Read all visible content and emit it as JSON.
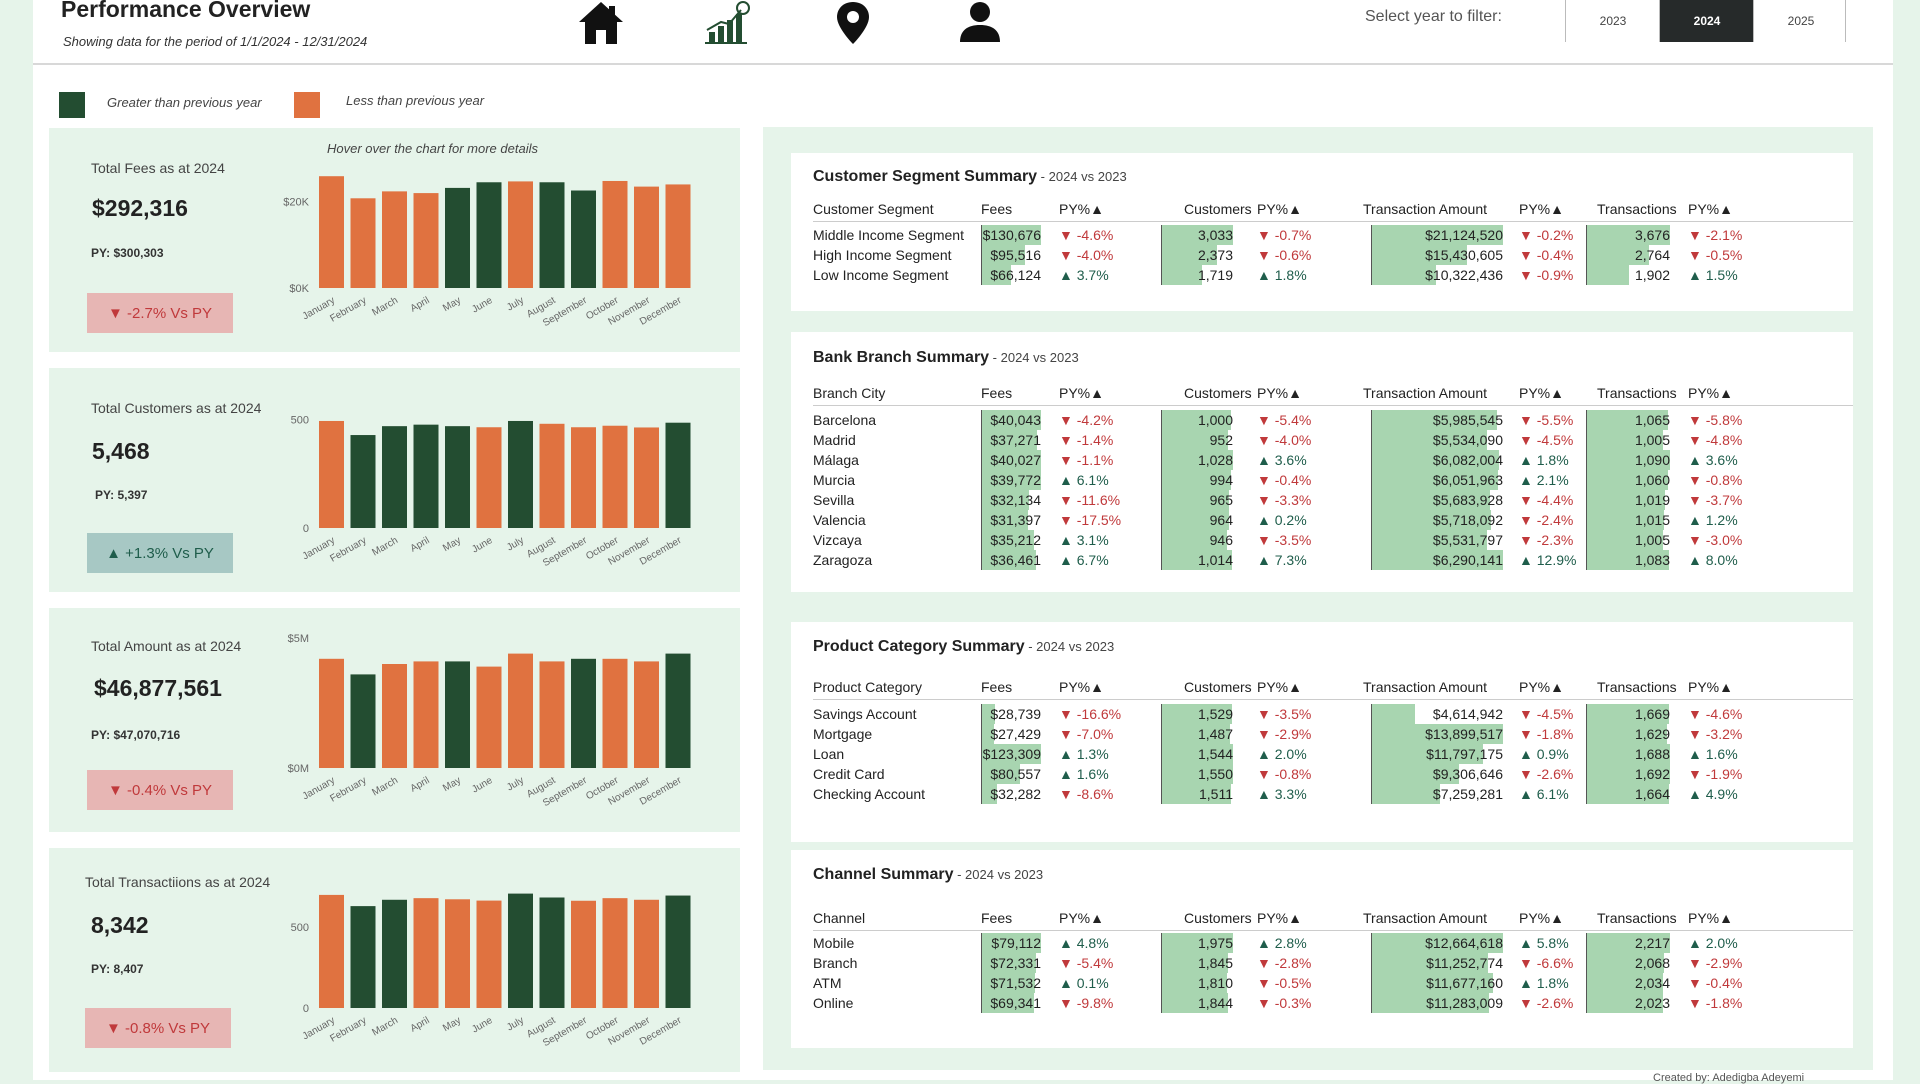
{
  "header": {
    "title": "Performance Overview",
    "subtitle": "Showing data for the period of 1/1/2024 - 12/31/2024",
    "nav_icons": [
      "home-icon",
      "growth-chart-icon",
      "location-pin-icon",
      "user-icon"
    ],
    "filter_label": "Select year to filter:",
    "years": [
      "2023",
      "2024",
      "2025"
    ],
    "selected_year": "2024"
  },
  "legend": {
    "greater_label": "Greater than previous year",
    "less_label": "Less than previous year",
    "greater_color": "#234d31",
    "less_color": "#e07240"
  },
  "hover_note": "Hover over the chart for more details",
  "months": [
    "January",
    "February",
    "March",
    "April",
    "May",
    "June",
    "July",
    "August",
    "September",
    "October",
    "November",
    "December"
  ],
  "kpis": [
    {
      "title": "Total Fees as at 2024",
      "value": "$292,316",
      "py": "PY: $300,303",
      "badge": "▼ -2.7% Vs PY",
      "trend": "down",
      "chart_data": {
        "type": "bar",
        "categories": [
          "January",
          "February",
          "March",
          "April",
          "May",
          "June",
          "July",
          "August",
          "September",
          "October",
          "November",
          "December"
        ],
        "values": [
          25800,
          20700,
          22300,
          21900,
          23100,
          24400,
          24600,
          24400,
          22500,
          24700,
          23400,
          23900
        ],
        "status": [
          "less",
          "less",
          "less",
          "less",
          "greater",
          "greater",
          "less",
          "greater",
          "greater",
          "less",
          "less",
          "less"
        ],
        "yticks": [
          {
            "value": 0,
            "label": "$0K"
          },
          {
            "value": 20000,
            "label": "$20K"
          }
        ],
        "ylim": [
          0,
          30000
        ]
      }
    },
    {
      "title": "Total Customers as at 2024",
      "value": "5,468",
      "py": "PY: 5,397",
      "badge": "▲ +1.3% Vs PY",
      "trend": "up",
      "chart_data": {
        "type": "bar",
        "categories": [
          "January",
          "February",
          "March",
          "April",
          "May",
          "June",
          "July",
          "August",
          "September",
          "October",
          "November",
          "December"
        ],
        "values": [
          494,
          429,
          470,
          477,
          470,
          465,
          494,
          481,
          465,
          472,
          464,
          486
        ],
        "status": [
          "less",
          "greater",
          "greater",
          "greater",
          "greater",
          "less",
          "greater",
          "less",
          "less",
          "less",
          "less",
          "greater"
        ],
        "yticks": [
          {
            "value": 0,
            "label": "0"
          },
          {
            "value": 500,
            "label": "500"
          }
        ],
        "ylim": [
          0,
          600
        ]
      }
    },
    {
      "title": "Total Amount as at 2024",
      "value": "$46,877,561",
      "py": "PY: $47,070,716",
      "badge": "▼ -0.4% Vs PY",
      "trend": "down",
      "chart_data": {
        "type": "bar",
        "categories": [
          "January",
          "February",
          "March",
          "April",
          "May",
          "June",
          "July",
          "August",
          "September",
          "October",
          "November",
          "December"
        ],
        "values": [
          4200000,
          3600000,
          4000000,
          4100000,
          4100000,
          3900000,
          4400000,
          4100000,
          4200000,
          4200000,
          4100000,
          4400000
        ],
        "status": [
          "less",
          "greater",
          "less",
          "less",
          "greater",
          "less",
          "less",
          "less",
          "greater",
          "less",
          "less",
          "greater"
        ],
        "yticks": [
          {
            "value": 0,
            "label": "$0M"
          },
          {
            "value": 5000000,
            "label": "$5M"
          }
        ],
        "ylim": [
          0,
          5000000
        ]
      }
    },
    {
      "title": "Total Transactiions as at 2024",
      "value": "8,342",
      "py": "PY: 8,407",
      "badge": "▼ -0.8% Vs PY",
      "trend": "down",
      "chart_data": {
        "type": "bar",
        "categories": [
          "January",
          "February",
          "March",
          "April",
          "May",
          "June",
          "July",
          "August",
          "September",
          "October",
          "November",
          "December"
        ],
        "values": [
          696,
          627,
          666,
          676,
          669,
          661,
          704,
          680,
          660,
          676,
          666,
          692
        ],
        "status": [
          "less",
          "greater",
          "greater",
          "less",
          "less",
          "less",
          "greater",
          "greater",
          "less",
          "less",
          "less",
          "greater"
        ],
        "yticks": [
          {
            "value": 0,
            "label": "0"
          },
          {
            "value": 500,
            "label": "500"
          }
        ],
        "ylim": [
          0,
          800
        ]
      }
    }
  ],
  "tables": [
    {
      "title": "Customer Segment Summary",
      "subtitle": " - 2024 vs 2023",
      "headers": {
        "label": "Customer Segment",
        "fees": "Fees",
        "py": "PY%▲",
        "customers": "Customers",
        "amount": "Transaction Amount",
        "transactions": "Transactions"
      },
      "rows": [
        {
          "label": "Middle Income Segment",
          "fees": "$130,676",
          "fees_v": 130676,
          "fees_py": "▼ -4.6%",
          "cust": "3,033",
          "cust_v": 3033,
          "cust_py": "▼ -0.7%",
          "amt": "$21,124,520",
          "amt_v": 21124520,
          "amt_py": "▼ -0.2%",
          "txn": "3,676",
          "txn_v": 3676,
          "txn_py": "▼ -2.1%"
        },
        {
          "label": "High Income Segment",
          "fees": "$95,516",
          "fees_v": 95516,
          "fees_py": "▼ -4.0%",
          "cust": "2,373",
          "cust_v": 2373,
          "cust_py": "▼ -0.6%",
          "amt": "$15,430,605",
          "amt_v": 15430605,
          "amt_py": "▼ -0.4%",
          "txn": "2,764",
          "txn_v": 2764,
          "txn_py": "▼ -0.5%"
        },
        {
          "label": "Low Income Segment",
          "fees": "$66,124",
          "fees_v": 66124,
          "fees_py": "▲ 3.7%",
          "cust": "1,719",
          "cust_v": 1719,
          "cust_py": "▲ 1.8%",
          "amt": "$10,322,436",
          "amt_v": 10322436,
          "amt_py": "▼ -0.9%",
          "txn": "1,902",
          "txn_v": 1902,
          "txn_py": "▲ 1.5%"
        }
      ]
    },
    {
      "title": "Bank Branch Summary",
      "subtitle": " - 2024 vs 2023",
      "headers": {
        "label": "Branch City",
        "fees": "Fees",
        "py": "PY%▲",
        "customers": "Customers",
        "amount": "Transaction Amount",
        "transactions": "Transactions"
      },
      "rows": [
        {
          "label": "Barcelona",
          "fees": "$40,043",
          "fees_v": 40043,
          "fees_py": "▼ -4.2%",
          "cust": "1,000",
          "cust_v": 1000,
          "cust_py": "▼ -5.4%",
          "amt": "$5,985,545",
          "amt_v": 5985545,
          "amt_py": "▼ -5.5%",
          "txn": "1,065",
          "txn_v": 1065,
          "txn_py": "▼ -5.8%"
        },
        {
          "label": "Madrid",
          "fees": "$37,271",
          "fees_v": 37271,
          "fees_py": "▼ -1.4%",
          "cust": "952",
          "cust_v": 952,
          "cust_py": "▼ -4.0%",
          "amt": "$5,534,090",
          "amt_v": 5534090,
          "amt_py": "▼ -4.5%",
          "txn": "1,005",
          "txn_v": 1005,
          "txn_py": "▼ -4.8%"
        },
        {
          "label": "Málaga",
          "fees": "$40,027",
          "fees_v": 40027,
          "fees_py": "▼ -1.1%",
          "cust": "1,028",
          "cust_v": 1028,
          "cust_py": "▲ 3.6%",
          "amt": "$6,082,004",
          "amt_v": 6082004,
          "amt_py": "▲ 1.8%",
          "txn": "1,090",
          "txn_v": 1090,
          "txn_py": "▲ 3.6%"
        },
        {
          "label": "Murcia",
          "fees": "$39,772",
          "fees_v": 39772,
          "fees_py": "▲ 6.1%",
          "cust": "994",
          "cust_v": 994,
          "cust_py": "▼ -0.4%",
          "amt": "$6,051,963",
          "amt_v": 6051963,
          "amt_py": "▲ 2.1%",
          "txn": "1,060",
          "txn_v": 1060,
          "txn_py": "▼ -0.8%"
        },
        {
          "label": "Sevilla",
          "fees": "$32,134",
          "fees_v": 32134,
          "fees_py": "▼ -11.6%",
          "cust": "965",
          "cust_v": 965,
          "cust_py": "▼ -3.3%",
          "amt": "$5,683,928",
          "amt_v": 5683928,
          "amt_py": "▼ -4.4%",
          "txn": "1,019",
          "txn_v": 1019,
          "txn_py": "▼ -3.7%"
        },
        {
          "label": "Valencia",
          "fees": "$31,397",
          "fees_v": 31397,
          "fees_py": "▼ -17.5%",
          "cust": "964",
          "cust_v": 964,
          "cust_py": "▲ 0.2%",
          "amt": "$5,718,092",
          "amt_v": 5718092,
          "amt_py": "▼ -2.4%",
          "txn": "1,015",
          "txn_v": 1015,
          "txn_py": "▲ 1.2%"
        },
        {
          "label": "Vizcaya",
          "fees": "$35,212",
          "fees_v": 35212,
          "fees_py": "▲ 3.1%",
          "cust": "946",
          "cust_v": 946,
          "cust_py": "▼ -3.5%",
          "amt": "$5,531,797",
          "amt_v": 5531797,
          "amt_py": "▼ -2.3%",
          "txn": "1,005",
          "txn_v": 1005,
          "txn_py": "▼ -3.0%"
        },
        {
          "label": "Zaragoza",
          "fees": "$36,461",
          "fees_v": 36461,
          "fees_py": "▲ 6.7%",
          "cust": "1,014",
          "cust_v": 1014,
          "cust_py": "▲ 7.3%",
          "amt": "$6,290,141",
          "amt_v": 6290141,
          "amt_py": "▲ 12.9%",
          "txn": "1,083",
          "txn_v": 1083,
          "txn_py": "▲ 8.0%"
        }
      ]
    },
    {
      "title": "Product Category Summary",
      "subtitle": " - 2024 vs 2023",
      "headers": {
        "label": "Product Category",
        "fees": "Fees",
        "py": "PY%▲",
        "customers": "Customers",
        "amount": "Transaction Amount",
        "transactions": "Transactions"
      },
      "rows": [
        {
          "label": "Savings Account",
          "fees": "$28,739",
          "fees_v": 28739,
          "fees_py": "▼ -16.6%",
          "cust": "1,529",
          "cust_v": 1529,
          "cust_py": "▼ -3.5%",
          "amt": "$4,614,942",
          "amt_v": 4614942,
          "amt_py": "▼ -4.5%",
          "txn": "1,669",
          "txn_v": 1669,
          "txn_py": "▼ -4.6%"
        },
        {
          "label": "Mortgage",
          "fees": "$27,429",
          "fees_v": 27429,
          "fees_py": "▼ -7.0%",
          "cust": "1,487",
          "cust_v": 1487,
          "cust_py": "▼ -2.9%",
          "amt": "$13,899,517",
          "amt_v": 13899517,
          "amt_py": "▼ -1.8%",
          "txn": "1,629",
          "txn_v": 1629,
          "txn_py": "▼ -3.2%"
        },
        {
          "label": "Loan",
          "fees": "$123,309",
          "fees_v": 123309,
          "fees_py": "▲ 1.3%",
          "cust": "1,544",
          "cust_v": 1544,
          "cust_py": "▲ 2.0%",
          "amt": "$11,797,175",
          "amt_v": 11797175,
          "amt_py": "▲ 0.9%",
          "txn": "1,688",
          "txn_v": 1688,
          "txn_py": "▲ 1.6%"
        },
        {
          "label": "Credit Card",
          "fees": "$80,557",
          "fees_v": 80557,
          "fees_py": "▲ 1.6%",
          "cust": "1,550",
          "cust_v": 1550,
          "cust_py": "▼ -0.8%",
          "amt": "$9,306,646",
          "amt_v": 9306646,
          "amt_py": "▼ -2.6%",
          "txn": "1,692",
          "txn_v": 1692,
          "txn_py": "▼ -1.9%"
        },
        {
          "label": "Checking Account",
          "fees": "$32,282",
          "fees_v": 32282,
          "fees_py": "▼ -8.6%",
          "cust": "1,511",
          "cust_v": 1511,
          "cust_py": "▲ 3.3%",
          "amt": "$7,259,281",
          "amt_v": 7259281,
          "amt_py": "▲ 6.1%",
          "txn": "1,664",
          "txn_v": 1664,
          "txn_py": "▲ 4.9%"
        }
      ]
    },
    {
      "title": "Channel Summary",
      "subtitle": " - 2024 vs 2023",
      "headers": {
        "label": "Channel",
        "fees": "Fees",
        "py": "PY%▲",
        "customers": "Customers",
        "amount": "Transaction Amount",
        "transactions": "Transactions"
      },
      "rows": [
        {
          "label": "Mobile",
          "fees": "$79,112",
          "fees_v": 79112,
          "fees_py": "▲ 4.8%",
          "cust": "1,975",
          "cust_v": 1975,
          "cust_py": "▲ 2.8%",
          "amt": "$12,664,618",
          "amt_v": 12664618,
          "amt_py": "▲ 5.8%",
          "txn": "2,217",
          "txn_v": 2217,
          "txn_py": "▲ 2.0%"
        },
        {
          "label": "Branch",
          "fees": "$72,331",
          "fees_v": 72331,
          "fees_py": "▼ -5.4%",
          "cust": "1,845",
          "cust_v": 1845,
          "cust_py": "▼ -2.8%",
          "amt": "$11,252,774",
          "amt_v": 11252774,
          "amt_py": "▼ -6.6%",
          "txn": "2,068",
          "txn_v": 2068,
          "txn_py": "▼ -2.9%"
        },
        {
          "label": "ATM",
          "fees": "$71,532",
          "fees_v": 71532,
          "fees_py": "▲ 0.1%",
          "cust": "1,810",
          "cust_v": 1810,
          "cust_py": "▼ -0.5%",
          "amt": "$11,677,160",
          "amt_v": 11677160,
          "amt_py": "▲ 1.8%",
          "txn": "2,034",
          "txn_v": 2034,
          "txn_py": "▼ -0.4%"
        },
        {
          "label": "Online",
          "fees": "$69,341",
          "fees_v": 69341,
          "fees_py": "▼ -9.8%",
          "cust": "1,844",
          "cust_v": 1844,
          "cust_py": "▼ -0.3%",
          "amt": "$11,283,009",
          "amt_v": 11283009,
          "amt_py": "▼ -2.6%",
          "txn": "2,023",
          "txn_v": 2023,
          "txn_py": "▼ -1.8%"
        }
      ]
    }
  ],
  "footer_note": "Created by: Adedigba Adeyemi"
}
